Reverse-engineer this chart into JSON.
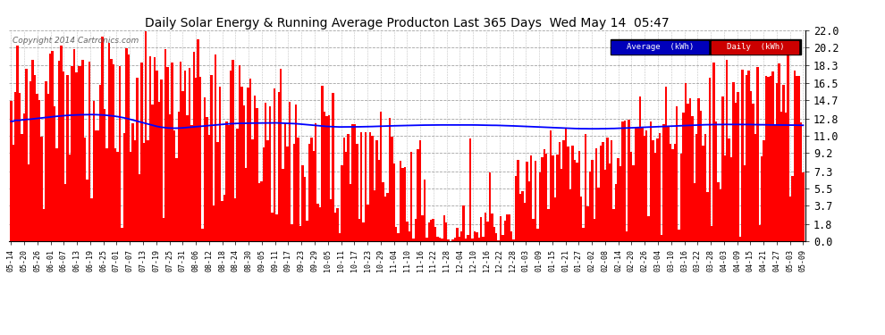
{
  "title": "Daily Solar Energy & Running Average Producton Last 365 Days  Wed May 14  05:47",
  "copyright": "Copyright 2014 Cartronics.com",
  "yticks": [
    0.0,
    1.8,
    3.7,
    5.5,
    7.3,
    9.2,
    11.0,
    12.8,
    14.7,
    16.5,
    18.3,
    20.2,
    22.0
  ],
  "ymax": 22.0,
  "bar_color": "#ff0000",
  "avg_color": "#0000ff",
  "bg_color": "#ffffff",
  "xtick_labels": [
    "05-14",
    "05-20",
    "05-26",
    "06-01",
    "06-07",
    "06-13",
    "06-19",
    "06-25",
    "07-01",
    "07-07",
    "07-13",
    "07-19",
    "07-25",
    "07-31",
    "08-06",
    "08-12",
    "08-18",
    "08-24",
    "08-30",
    "09-05",
    "09-11",
    "09-17",
    "09-23",
    "09-29",
    "10-05",
    "10-11",
    "10-17",
    "10-23",
    "10-29",
    "11-04",
    "11-10",
    "11-16",
    "11-22",
    "11-28",
    "12-04",
    "12-10",
    "12-16",
    "12-22",
    "12-28",
    "01-03",
    "01-09",
    "01-15",
    "01-21",
    "01-27",
    "02-02",
    "02-08",
    "02-14",
    "02-20",
    "02-26",
    "03-04",
    "03-10",
    "03-16",
    "03-22",
    "03-28",
    "04-03",
    "04-09",
    "04-15",
    "04-21",
    "04-27",
    "05-03",
    "05-09"
  ],
  "avg_values": [
    12.5,
    12.5,
    12.6,
    12.6,
    12.6,
    12.65,
    12.65,
    12.7,
    12.7,
    12.72,
    12.75,
    12.78,
    12.8,
    12.82,
    12.85,
    12.88,
    12.9,
    12.92,
    12.95,
    12.97,
    13.0,
    13.02,
    13.04,
    13.06,
    13.08,
    13.1,
    13.12,
    13.13,
    13.14,
    13.15,
    13.16,
    13.17,
    13.18,
    13.18,
    13.19,
    13.19,
    13.2,
    13.2,
    13.2,
    13.19,
    13.18,
    13.17,
    13.16,
    13.14,
    13.12,
    13.1,
    13.08,
    13.05,
    13.02,
    12.98,
    12.94,
    12.9,
    12.85,
    12.8,
    12.74,
    12.68,
    12.62,
    12.56,
    12.5,
    12.44,
    12.38,
    12.32,
    12.26,
    12.2,
    12.14,
    12.08,
    12.02,
    11.96,
    11.92,
    11.88,
    11.85,
    11.82,
    11.8,
    11.79,
    11.78,
    11.78,
    11.78,
    11.79,
    11.8,
    11.82,
    11.84,
    11.86,
    11.88,
    11.9,
    11.92,
    11.94,
    11.96,
    11.98,
    12.0,
    12.02,
    12.04,
    12.06,
    12.08,
    12.1,
    12.12,
    12.14,
    12.16,
    12.18,
    12.2,
    12.22,
    12.24,
    12.25,
    12.26,
    12.27,
    12.28,
    12.28,
    12.29,
    12.29,
    12.3,
    12.3,
    12.31,
    12.31,
    12.32,
    12.32,
    12.32,
    12.33,
    12.33,
    12.33,
    12.33,
    12.33,
    12.33,
    12.33,
    12.33,
    12.32,
    12.32,
    12.31,
    12.3,
    12.29,
    12.28,
    12.27,
    12.26,
    12.24,
    12.22,
    12.2,
    12.18,
    12.16,
    12.14,
    12.12,
    12.1,
    12.08,
    12.06,
    12.04,
    12.02,
    12.0,
    11.98,
    11.96,
    11.95,
    11.94,
    11.93,
    11.92,
    11.91,
    11.91,
    11.91,
    11.91,
    11.91,
    11.91,
    11.91,
    11.91,
    11.92,
    11.92,
    11.93,
    11.93,
    11.94,
    11.94,
    11.95,
    11.95,
    11.96,
    11.97,
    11.97,
    11.98,
    11.99,
    12.0,
    12.0,
    12.01,
    12.02,
    12.03,
    12.03,
    12.04,
    12.04,
    12.05,
    12.06,
    12.06,
    12.07,
    12.07,
    12.08,
    12.08,
    12.09,
    12.09,
    12.09,
    12.1,
    12.1,
    12.1,
    12.11,
    12.11,
    12.11,
    12.11,
    12.12,
    12.12,
    12.12,
    12.12,
    12.12,
    12.12,
    12.12,
    12.12,
    12.12,
    12.12,
    12.12,
    12.12,
    12.12,
    12.12,
    12.12,
    12.12,
    12.11,
    12.11,
    12.11,
    12.1,
    12.1,
    12.1,
    12.09,
    12.09,
    12.08,
    12.08,
    12.08,
    12.07,
    12.07,
    12.06,
    12.05,
    12.05,
    12.04,
    12.03,
    12.02,
    12.01,
    12.0,
    11.99,
    11.98,
    11.97,
    11.96,
    11.95,
    11.94,
    11.93,
    11.92,
    11.91,
    11.9,
    11.89,
    11.88,
    11.87,
    11.86,
    11.85,
    11.84,
    11.83,
    11.82,
    11.81,
    11.8,
    11.79,
    11.78,
    11.77,
    11.76,
    11.75,
    11.75,
    11.74,
    11.74,
    11.73,
    11.73,
    11.73,
    11.72,
    11.72,
    11.72,
    11.72,
    11.72,
    11.72,
    11.73,
    11.73,
    11.73,
    11.74,
    11.74,
    11.75,
    11.75,
    11.76,
    11.77,
    11.77,
    11.78,
    11.79,
    11.8,
    11.81,
    11.82,
    11.83,
    11.84,
    11.85,
    11.86,
    11.87,
    11.88,
    11.89,
    11.9,
    11.91,
    11.92,
    11.93,
    11.94,
    11.95,
    11.96,
    11.97,
    11.98,
    11.99,
    12.0,
    12.01,
    12.02,
    12.03,
    12.04,
    12.05,
    12.06,
    12.07,
    12.08,
    12.09,
    12.09,
    12.1,
    12.11,
    12.12,
    12.12,
    12.13,
    12.14,
    12.14,
    12.15,
    12.15,
    12.16,
    12.16,
    12.16,
    12.16,
    12.16,
    12.17,
    12.17,
    12.17,
    12.17,
    12.17,
    12.17,
    12.17,
    12.17,
    12.16,
    12.16,
    12.16,
    12.16,
    12.16,
    12.15,
    12.15,
    12.15,
    12.14,
    12.14,
    12.14,
    12.13,
    12.13,
    12.12,
    12.12,
    12.12,
    12.12,
    12.11,
    12.11,
    12.11,
    12.11,
    12.1,
    12.1,
    12.1,
    12.1,
    12.09,
    12.09,
    12.09,
    12.08
  ]
}
